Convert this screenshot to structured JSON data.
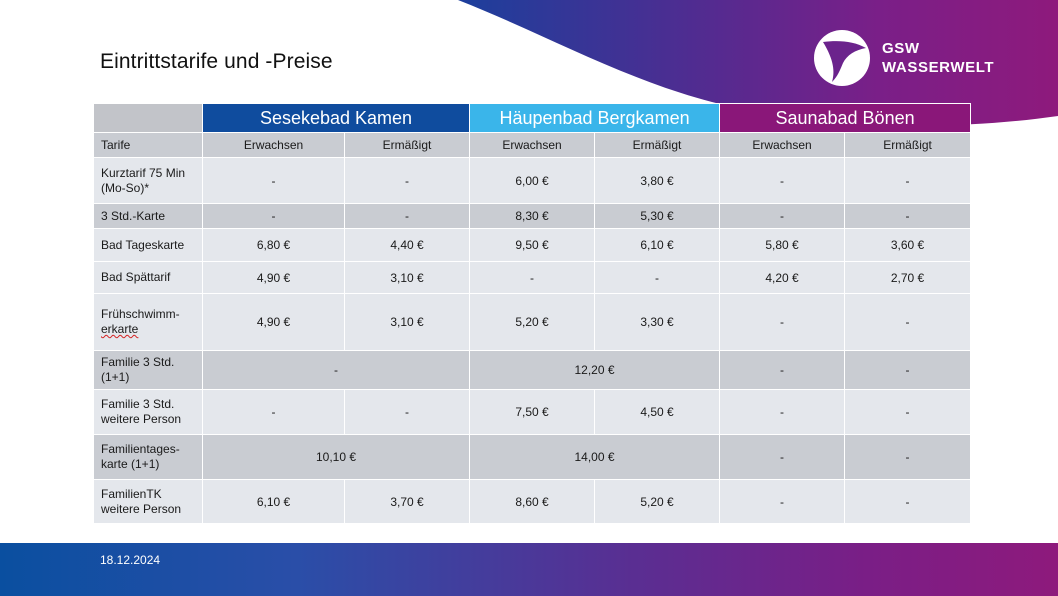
{
  "slide": {
    "title": "Eintrittstarife und -Preise",
    "date": "18.12.2024"
  },
  "logo": {
    "line1": "GSW",
    "line2": "WASSERWELT",
    "icon": "gsw-swirl-logo-icon"
  },
  "colors": {
    "sesekebad": "#0f4c9e",
    "haeupenbad": "#3ab5ea",
    "saunabad": "#8a1779",
    "header_gray": "#c9ccd2",
    "row_light": "#e4e7ec"
  },
  "table": {
    "facilities": [
      "Sesekebad Kamen",
      "Häupenbad Bergkamen",
      "Saunabad Bönen"
    ],
    "tarife_label": "Tarife",
    "subheaders": [
      "Erwachsen",
      "Ermäßigt",
      "Erwachsen",
      "Ermäßigt",
      "Erwachsen",
      "Ermäßigt"
    ],
    "rows": [
      {
        "label": "Kurztarif 75 Min (Mo-So)*",
        "cells": [
          "-",
          "-",
          "6,00 €",
          "3,80 €",
          "-",
          "-"
        ]
      },
      {
        "label": "3 Std.-Karte",
        "cells": [
          "-",
          "-",
          "8,30 €",
          "5,30 €",
          "-",
          "-"
        ]
      },
      {
        "label": "Bad Tageskarte",
        "cells": [
          "6,80 €",
          "4,40 €",
          "9,50 €",
          "6,10 €",
          "5,80 €",
          "3,60 €"
        ]
      },
      {
        "label": "Bad Spättarif",
        "cells": [
          "4,90 €",
          "3,10 €",
          "-",
          "-",
          "4,20 €",
          "2,70 €"
        ]
      },
      {
        "label_line1": "Frühschwimm-",
        "label_line2": "erkarte",
        "cells": [
          "4,90 €",
          "3,10 €",
          "5,20 €",
          "3,30 €",
          "-",
          "-"
        ]
      },
      {
        "label": "Familie 3 Std. (1+1)",
        "merged": [
          "-",
          "12,20 €"
        ],
        "cells": [
          "-",
          "-"
        ]
      },
      {
        "label": "Familie 3 Std. weitere Person",
        "cells": [
          "-",
          "-",
          "7,50 €",
          "4,50 €",
          "-",
          "-"
        ]
      },
      {
        "label": "Familientages-karte (1+1)",
        "merged": [
          "10,10 €",
          "14,00 €"
        ],
        "cells": [
          "-",
          "-"
        ]
      },
      {
        "label": "FamilienTK weitere Person",
        "cells": [
          "6,10 €",
          "3,70 €",
          "8,60 €",
          "5,20 €",
          "-",
          "-"
        ]
      }
    ]
  }
}
